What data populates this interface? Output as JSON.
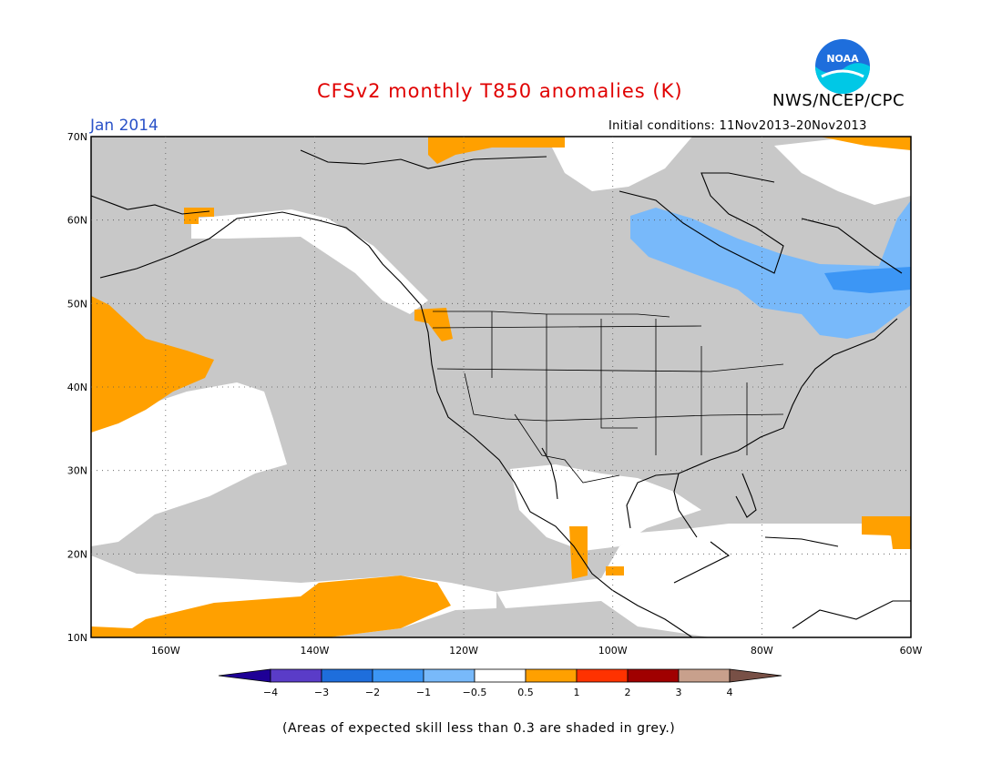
{
  "title": "CFSv2 monthly T850 anomalies (K)",
  "target_month": "Jan 2014",
  "agency": "NWS/NCEP/CPC",
  "logo_text": "NOAA",
  "initial_conditions": "Initial conditions: 11Nov2013–20Nov2013",
  "note": "(Areas of expected skill less than 0.3 are shaded in grey.)",
  "map": {
    "lon_range": [
      -170,
      -60
    ],
    "lat_range": [
      10,
      70
    ],
    "lat_labels": [
      "70N",
      "60N",
      "50N",
      "40N",
      "30N",
      "20N",
      "10N"
    ],
    "lon_labels": [
      "160W",
      "140W",
      "120W",
      "100W",
      "80W",
      "60W"
    ]
  },
  "colors": {
    "grey_low_skill": "#c8c8c8",
    "neutral": "#ffffff",
    "warm_0_5_1": "#ffa000",
    "cool_m1_m0_5": "#78b9fa",
    "cool_m2_m1": "#3c96f5"
  },
  "legend": {
    "labels": [
      "−4",
      "−3",
      "−2",
      "−1",
      "−0.5",
      "0.5",
      "1",
      "2",
      "3",
      "4"
    ],
    "colors": [
      "#1e0096",
      "#5a3cc8",
      "#1e6edc",
      "#3c96f5",
      "#78b9fa",
      "#ffffff",
      "#ffa000",
      "#ff3200",
      "#a00000",
      "#c8a08c",
      "#785046"
    ]
  }
}
